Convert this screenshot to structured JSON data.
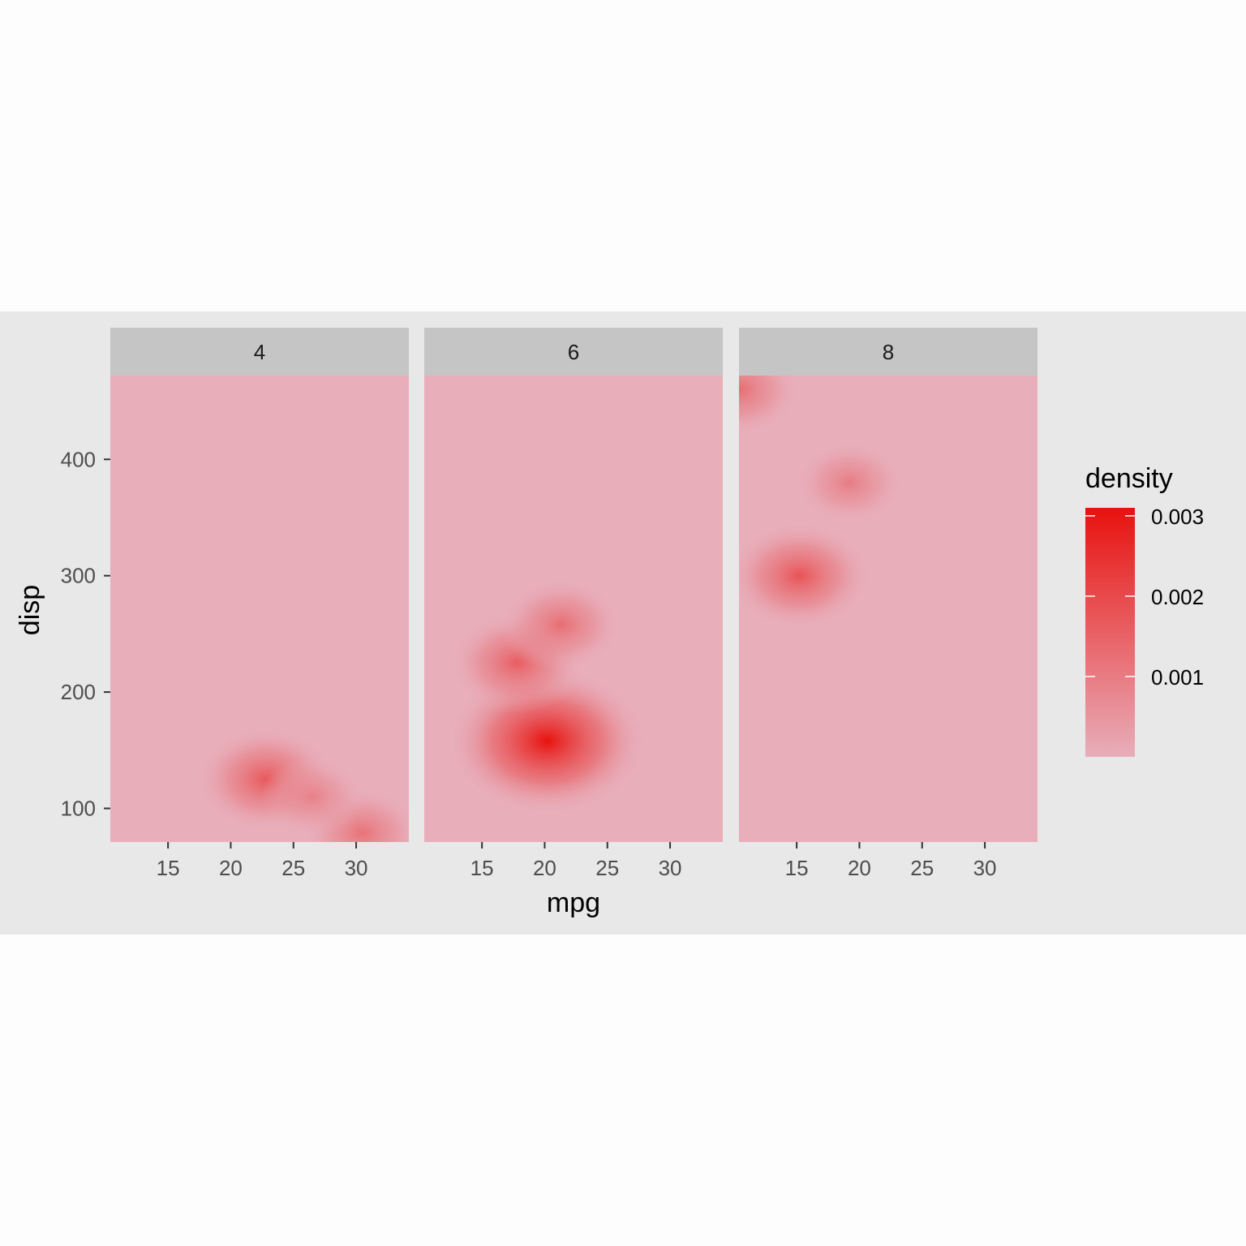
{
  "chart_data": {
    "type": "heatmap",
    "facet_var_values": [
      "4",
      "6",
      "8"
    ],
    "xlabel": "mpg",
    "ylabel": "disp",
    "x_ticks": [
      15,
      20,
      25,
      30
    ],
    "y_ticks": [
      100,
      200,
      300,
      400
    ],
    "xlim": [
      10.4,
      34.2
    ],
    "ylim": [
      71.1,
      472
    ],
    "colors": {
      "low": "#e8aeba",
      "high": "#e8120e",
      "plot_background": "#e8e8e8",
      "strip_background": "#c5c5c5"
    },
    "legend": {
      "title": "density",
      "position": "right",
      "breaks": [
        0.001,
        0.002,
        0.003
      ],
      "break_labels": [
        "0.001",
        "0.002",
        "0.003"
      ],
      "range": [
        0,
        0.0031
      ]
    },
    "panels": [
      {
        "label": "4",
        "peaks": [
          {
            "mpg": 22.8,
            "disp": 125,
            "density": 0.0017
          },
          {
            "mpg": 30.5,
            "disp": 79,
            "density": 0.0012
          },
          {
            "mpg": 26.5,
            "disp": 110,
            "density": 0.0009
          }
        ]
      },
      {
        "label": "6",
        "peaks": [
          {
            "mpg": 20.2,
            "disp": 158,
            "density": 0.0031
          },
          {
            "mpg": 17.8,
            "disp": 225,
            "density": 0.0016
          },
          {
            "mpg": 21.3,
            "disp": 258,
            "density": 0.0013
          }
        ]
      },
      {
        "label": "8",
        "peaks": [
          {
            "mpg": 15.2,
            "disp": 300,
            "density": 0.0018
          },
          {
            "mpg": 10.4,
            "disp": 460,
            "density": 0.0013
          },
          {
            "mpg": 19.2,
            "disp": 380,
            "density": 0.001
          }
        ]
      }
    ]
  }
}
